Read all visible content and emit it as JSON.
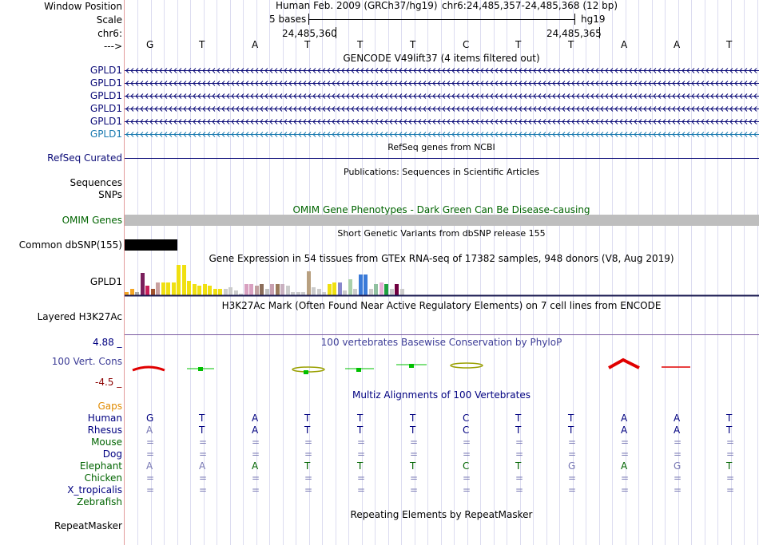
{
  "header": {
    "window_position_label": "Window Position",
    "scale_label": "Scale",
    "chrom_label": "chr6:",
    "arrow_label": "--->",
    "assembly": "Human Feb. 2009 (GRCh37/hg19)",
    "position": "chr6:24,485,357-24,485,368 (12 bp)",
    "scale_text": "5 bases",
    "scale_db": "hg19",
    "coord_1": "24,485,360",
    "coord_2": "24,485,365"
  },
  "sequence": [
    "G",
    "T",
    "A",
    "T",
    "T",
    "T",
    "C",
    "T",
    "T",
    "A",
    "A",
    "T"
  ],
  "tracks": {
    "gencode": {
      "title": "GENCODE V49lift37 (4 items filtered out)",
      "items": [
        "GPLD1",
        "GPLD1",
        "GPLD1",
        "GPLD1",
        "GPLD1",
        "GPLD1"
      ]
    },
    "refseq": {
      "label": "RefSeq Curated",
      "title": "RefSeq genes from NCBI"
    },
    "publications": {
      "title": "Publications: Sequences in Scientific Articles",
      "label_1": "Sequences",
      "label_2": "SNPs"
    },
    "omim": {
      "title": "OMIM Gene Phenotypes - Dark Green Can Be Disease-causing",
      "label": "OMIM Genes"
    },
    "dbsnp": {
      "title": "Short Genetic Variants from dbSNP release 155",
      "label": "Common dbSNP(155)"
    },
    "gtex": {
      "title": "Gene Expression in 54 tissues from GTEx RNA-seq of 17382 samples, 948 donors (V8, Aug 2019)",
      "label": "GPLD1",
      "bars": [
        {
          "v": 4,
          "c": "#f5a623"
        },
        {
          "v": 8,
          "c": "#f5a623"
        },
        {
          "v": 4,
          "c": "#aaaaaa"
        },
        {
          "v": 28,
          "c": "#7a1f5c"
        },
        {
          "v": 12,
          "c": "#c81e5a"
        },
        {
          "v": 8,
          "c": "#a0522d"
        },
        {
          "v": 16,
          "c": "#c8a0a0"
        },
        {
          "v": 16,
          "c": "#f0e010"
        },
        {
          "v": 16,
          "c": "#f0e010"
        },
        {
          "v": 16,
          "c": "#f0e010"
        },
        {
          "v": 38,
          "c": "#f0e010"
        },
        {
          "v": 38,
          "c": "#f0e010"
        },
        {
          "v": 18,
          "c": "#f0e010"
        },
        {
          "v": 14,
          "c": "#f0e010"
        },
        {
          "v": 12,
          "c": "#f0e010"
        },
        {
          "v": 14,
          "c": "#f0e010"
        },
        {
          "v": 12,
          "c": "#f0e010"
        },
        {
          "v": 8,
          "c": "#f0e010"
        },
        {
          "v": 8,
          "c": "#f0e010"
        },
        {
          "v": 8,
          "c": "#cccccc"
        },
        {
          "v": 10,
          "c": "#cccccc"
        },
        {
          "v": 6,
          "c": "#cccccc"
        },
        {
          "v": 2,
          "c": "#cccccc"
        },
        {
          "v": 14,
          "c": "#d8a0c0"
        },
        {
          "v": 14,
          "c": "#d8a0c0"
        },
        {
          "v": 12,
          "c": "#c0a0a0"
        },
        {
          "v": 14,
          "c": "#8b6d5a"
        },
        {
          "v": 8,
          "c": "#c0c0c0"
        },
        {
          "v": 14,
          "c": "#c8a0b0"
        },
        {
          "v": 14,
          "c": "#9a7a5a"
        },
        {
          "v": 14,
          "c": "#c8b0c0"
        },
        {
          "v": 12,
          "c": "#cccccc"
        },
        {
          "v": 4,
          "c": "#cccccc"
        },
        {
          "v": 4,
          "c": "#cccccc"
        },
        {
          "v": 4,
          "c": "#cccccc"
        },
        {
          "v": 30,
          "c": "#b8a080"
        },
        {
          "v": 10,
          "c": "#cccccc"
        },
        {
          "v": 8,
          "c": "#cccccc"
        },
        {
          "v": 4,
          "c": "#cccccc"
        },
        {
          "v": 14,
          "c": "#f0e010"
        },
        {
          "v": 16,
          "c": "#f0e010"
        },
        {
          "v": 16,
          "c": "#8888cc"
        },
        {
          "v": 6,
          "c": "#cccccc"
        },
        {
          "v": 20,
          "c": "#aad0aa"
        },
        {
          "v": 8,
          "c": "#cccccc"
        },
        {
          "v": 26,
          "c": "#3a7ad8"
        },
        {
          "v": 26,
          "c": "#3a7ad8"
        },
        {
          "v": 8,
          "c": "#cccccc"
        },
        {
          "v": 14,
          "c": "#90c0a0"
        },
        {
          "v": 16,
          "c": "#e8b0d8"
        },
        {
          "v": 14,
          "c": "#20a040"
        },
        {
          "v": 8,
          "c": "#cccccc"
        },
        {
          "v": 14,
          "c": "#700040"
        },
        {
          "v": 8,
          "c": "#cccccc"
        }
      ]
    },
    "h3k27ac": {
      "title": "H3K27Ac Mark (Often Found Near Active Regulatory Elements) on 7 cell lines from ENCODE",
      "label": "Layered H3K27Ac"
    },
    "phylop": {
      "title": "100 vertebrates Basewise Conservation by PhyloP",
      "label": "100 Vert. Cons",
      "ymax": "4.88 _",
      "ymin": "-4.5 _"
    },
    "multiz": {
      "title": "Multiz Alignments of 100 Vertebrates",
      "gaps_label": "Gaps",
      "species": [
        {
          "name": "Human",
          "color": "#000080",
          "bases": [
            "G",
            "T",
            "A",
            "T",
            "T",
            "T",
            "C",
            "T",
            "T",
            "A",
            "A",
            "T"
          ],
          "bcolor": "#000080"
        },
        {
          "name": "Rhesus",
          "color": "#000080",
          "bases": [
            "A",
            "T",
            "A",
            "T",
            "T",
            "T",
            "C",
            "T",
            "T",
            "A",
            "A",
            "T"
          ],
          "bcolor": "#000080",
          "mism": [
            0
          ]
        },
        {
          "name": "Mouse",
          "color": "#006400",
          "bases": [
            "=",
            "=",
            "=",
            "=",
            "=",
            "=",
            "=",
            "=",
            "=",
            "=",
            "=",
            "="
          ],
          "bcolor": "#006400"
        },
        {
          "name": "Dog",
          "color": "#000080",
          "bases": [
            "=",
            "=",
            "=",
            "=",
            "=",
            "=",
            "=",
            "=",
            "=",
            "=",
            "=",
            "="
          ],
          "bcolor": "#000080"
        },
        {
          "name": "Elephant",
          "color": "#006400",
          "bases": [
            "A",
            "A",
            "A",
            "T",
            "T",
            "T",
            "C",
            "T",
            "G",
            "A",
            "G",
            "T"
          ],
          "bcolor": "#006400",
          "mism": [
            0,
            1,
            8,
            10
          ]
        },
        {
          "name": "Chicken",
          "color": "#006400",
          "bases": [
            "=",
            "=",
            "=",
            "=",
            "=",
            "=",
            "=",
            "=",
            "=",
            "=",
            "=",
            "="
          ],
          "bcolor": "#006400"
        },
        {
          "name": "X_tropicalis",
          "color": "#000080",
          "bases": [
            "=",
            "=",
            "=",
            "=",
            "=",
            "=",
            "=",
            "=",
            "=",
            "=",
            "=",
            "="
          ],
          "bcolor": "#000080"
        },
        {
          "name": "Zebrafish",
          "color": "#006400",
          "bases": [
            "",
            "",
            "",
            "",
            "",
            "",
            "",
            "",
            "",
            "",
            "",
            ""
          ],
          "bcolor": "#006400"
        }
      ]
    },
    "repeatmasker": {
      "title": "Repeating Elements by RepeatMasker",
      "label": "RepeatMasker"
    }
  },
  "colors": {
    "gene_dark": "#0c0c78",
    "gene_light": "#1a7ab0",
    "omim_bar": "#bebebe",
    "refseq_line": "#0c0c78",
    "mismatch": "#7878b4",
    "track_title_blue": "#3c3c96",
    "omim_green": "#006400",
    "gaps_orange": "#e08a00",
    "phylo_max": "#000080",
    "phylo_min": "#8b0000"
  }
}
